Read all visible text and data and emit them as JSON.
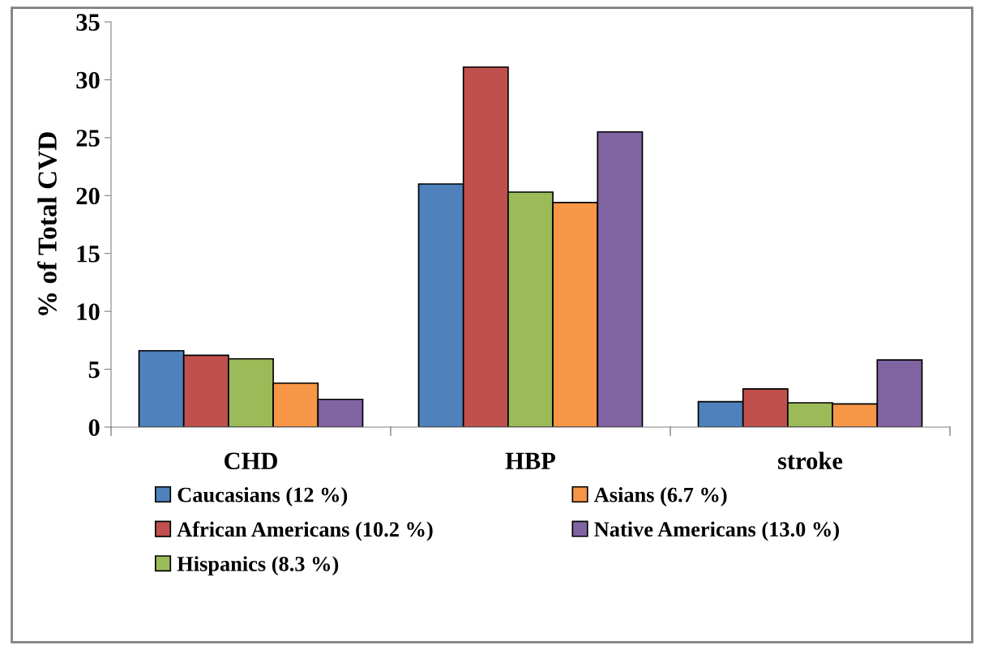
{
  "chart_data": {
    "type": "bar",
    "ylabel": "% of Total CVD",
    "categories": [
      "CHD",
      "HBP",
      "stroke"
    ],
    "series": [
      {
        "name": "Caucasians (12 %)",
        "color": "#4f81bd",
        "values": [
          6.6,
          21.0,
          2.2
        ]
      },
      {
        "name": "African Americans (10.2 %)",
        "color": "#c0504d",
        "values": [
          6.2,
          31.1,
          3.3
        ]
      },
      {
        "name": "Hispanics (8.3 %)",
        "color": "#9bbb59",
        "values": [
          5.9,
          20.3,
          2.1
        ]
      },
      {
        "name": "Asians (6.7 %)",
        "color": "#f79646",
        "values": [
          3.8,
          19.4,
          2.0
        ]
      },
      {
        "name": "Native Americans (13.0 %)",
        "color": "#8064a2",
        "values": [
          2.4,
          25.5,
          5.8
        ]
      }
    ],
    "ylim": [
      0,
      35
    ],
    "yticks": [
      0,
      5,
      10,
      15,
      20,
      25,
      30,
      35
    ],
    "grid": false,
    "legend": "bottom"
  }
}
